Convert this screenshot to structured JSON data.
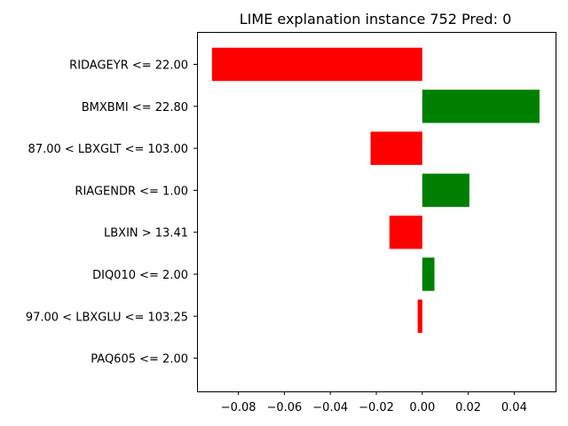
{
  "chart_data": {
    "type": "bar",
    "orientation": "horizontal",
    "title": "LIME explanation instance 752 Pred: 0",
    "xlabel": "",
    "ylabel": "",
    "categories": [
      "RIDAGEYR <= 22.00",
      "BMXBMI <= 22.80",
      "87.00 < LBXGLT <= 103.00",
      "RIAGENDR <= 1.00",
      "LBXIN > 13.41",
      "DIQ010 <= 2.00",
      "97.00 < LBXGLU <= 103.25",
      "PAQ605 <= 2.00"
    ],
    "values": [
      -0.0915,
      0.051,
      -0.0225,
      0.0205,
      -0.0143,
      0.0053,
      -0.002,
      0.0
    ],
    "xlim": [
      -0.098,
      0.058
    ],
    "xticks": [
      -0.08,
      -0.06,
      -0.04,
      -0.02,
      0.0,
      0.02,
      0.04
    ],
    "xtick_labels": [
      "−0.08",
      "−0.06",
      "−0.04",
      "−0.02",
      "0.00",
      "0.02",
      "0.04"
    ],
    "colors": {
      "positive": "#008000",
      "negative": "#ff0000"
    },
    "grid": false,
    "legend": "none"
  }
}
